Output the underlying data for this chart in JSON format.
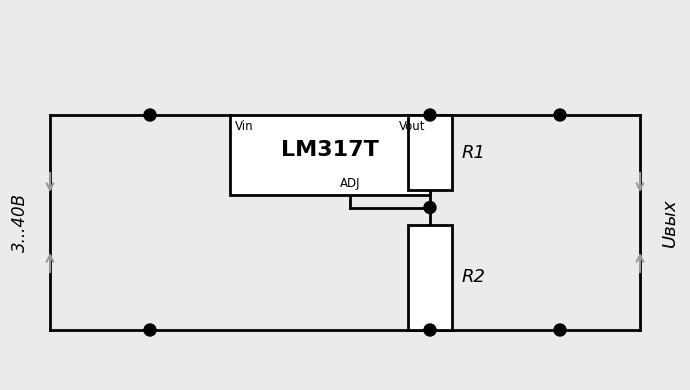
{
  "bg_color": "#ebebeb",
  "line_color": "#000000",
  "box_color": "#ffffff",
  "gray_color": "#999999",
  "node_color": "#000000",
  "ic_label": "LM317T",
  "ic_font_size": 16,
  "pin_vin": "Vin",
  "pin_vout": "Vout",
  "pin_adj": "ADJ",
  "r1_label": "R1",
  "r2_label": "R2",
  "left_label": "3...40В",
  "right_label": "Uвых",
  "arrow_color": "#999999",
  "figsize": [
    6.9,
    3.9
  ],
  "dpi": 100,
  "xlim": [
    0,
    6.9
  ],
  "ylim": [
    0,
    3.9
  ]
}
